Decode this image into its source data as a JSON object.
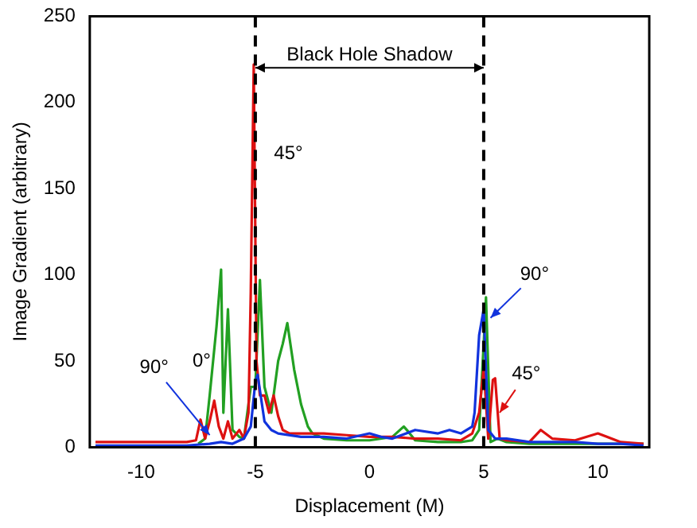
{
  "chart_data": {
    "type": "line",
    "xlabel": "Displacement (M)",
    "ylabel": "Image Gradient (arbitrary)",
    "xlim": [
      -12.25,
      12.25
    ],
    "xticks": [
      -10,
      -5,
      0,
      5,
      10
    ],
    "ylim": [
      0,
      250
    ],
    "yticks": [
      0,
      50,
      100,
      150,
      200,
      250
    ],
    "grid": false,
    "legend": false,
    "marker": "none",
    "line_style": "solid",
    "series": [
      {
        "color": "#22a022",
        "x": [
          -7.5,
          -7.2,
          -7,
          -6.7,
          -6.5,
          -6.4,
          -6.2,
          -6,
          -5.7,
          -5.5,
          -5.2,
          -5,
          -4.8,
          -4.6,
          -4.3,
          -4,
          -3.8,
          -3.6,
          -3.3,
          -3,
          -2.7,
          -2.5,
          -2,
          -1,
          0,
          1,
          1.5,
          1.7,
          2,
          3,
          4,
          4.5,
          4.8,
          5,
          5.1,
          5.3,
          5.6,
          6,
          7,
          8,
          9,
          10,
          11,
          12
        ],
        "values": [
          2,
          5,
          30,
          70,
          103,
          20,
          80,
          10,
          6,
          5,
          35,
          35,
          97,
          35,
          20,
          50,
          60,
          72,
          45,
          25,
          12,
          8,
          5,
          4,
          4,
          6,
          12,
          9,
          4,
          3,
          3,
          4,
          10,
          60,
          87,
          3,
          5,
          3,
          2,
          2,
          2,
          2,
          2,
          2
        ]
      },
      {
        "color": "#dd1111",
        "x": [
          -12,
          -11,
          -10,
          -9,
          -8,
          -7.6,
          -7.4,
          -7.2,
          -7,
          -6.8,
          -6.6,
          -6.4,
          -6.2,
          -6,
          -5.7,
          -5.5,
          -5.3,
          -5.2,
          -5.07,
          -4.95,
          -4.8,
          -4.6,
          -4.4,
          -4.2,
          -4,
          -3.8,
          -3.5,
          -3,
          -2,
          -1,
          0,
          1,
          2,
          3,
          4,
          4.5,
          4.8,
          5,
          5.2,
          5.4,
          5.5,
          5.7,
          6,
          7,
          7.5,
          8,
          9,
          10,
          11,
          12
        ],
        "values": [
          3,
          3,
          3,
          3,
          3,
          4,
          16,
          5,
          15,
          27,
          12,
          5,
          15,
          5,
          10,
          5,
          20,
          90,
          222,
          50,
          30,
          30,
          20,
          30,
          18,
          10,
          8,
          8,
          8,
          7,
          6,
          6,
          5,
          5,
          4,
          8,
          20,
          46,
          5,
          39,
          40,
          5,
          4,
          3,
          10,
          5,
          4,
          8,
          3,
          2
        ]
      },
      {
        "color": "#1133dd",
        "x": [
          -12,
          -11,
          -10,
          -9,
          -8,
          -7,
          -6.5,
          -6,
          -5.5,
          -5.2,
          -5,
          -4.9,
          -4.6,
          -4.3,
          -4,
          -3,
          -2,
          -1,
          0,
          0.5,
          1,
          2,
          3,
          3.5,
          4,
          4.5,
          4.6,
          4.8,
          5,
          5.2,
          5.5,
          6,
          7,
          8,
          9,
          10,
          11,
          12
        ],
        "values": [
          1,
          1,
          1,
          1,
          1,
          2,
          3,
          2,
          5,
          12,
          38,
          42,
          15,
          10,
          8,
          6,
          6,
          5,
          8,
          6,
          5,
          10,
          8,
          10,
          8,
          12,
          20,
          65,
          80,
          10,
          5,
          5,
          3,
          3,
          3,
          2,
          2,
          1
        ]
      }
    ],
    "ref_lines": [
      {
        "axis": "x",
        "value": -5,
        "color": "#000000",
        "line_style": "dashed"
      },
      {
        "axis": "x",
        "value": 5,
        "color": "#000000",
        "line_style": "dashed"
      }
    ],
    "annotations": [
      "Black Hole Shadow",
      "45°",
      "0°",
      {
        "text": "90°",
        "x": -7,
        "y": 7
      },
      {
        "text": "90°",
        "x": 5.3,
        "y": 75
      },
      {
        "text": "45°",
        "x": 5.7,
        "y": 20
      }
    ]
  }
}
